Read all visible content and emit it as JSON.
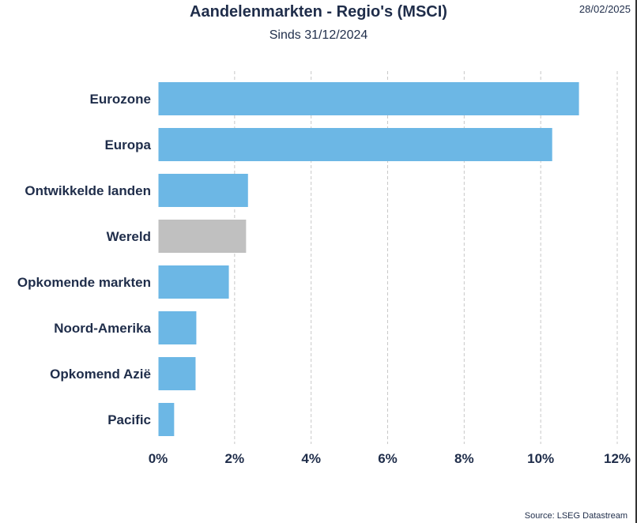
{
  "date": "28/02/2025",
  "source": "Source: LSEG Datastream",
  "colors": {
    "bar": "#6cb7e5",
    "highlight": "#c0c0c0",
    "grid": "#c8c8c8",
    "text": "#1f2d4a"
  },
  "chart_data": {
    "type": "bar",
    "orientation": "horizontal",
    "title": "Aandelenmarkten - Regio's (MSCI)",
    "subtitle": "Sinds 31/12/2024",
    "categories": [
      "Eurozone",
      "Europa",
      "Ontwikkelde landen",
      "Wereld",
      "Opkomende markten",
      "Noord-Amerika",
      "Opkomend Azië",
      "Pacific"
    ],
    "values": [
      11.0,
      10.3,
      2.35,
      2.3,
      1.85,
      1.0,
      0.98,
      0.42
    ],
    "highlight": "Wereld",
    "xlim": [
      0,
      12
    ],
    "x_ticks": [
      "0%",
      "2%",
      "4%",
      "6%",
      "8%",
      "10%",
      "12%"
    ],
    "grid": "vertical dashed"
  }
}
